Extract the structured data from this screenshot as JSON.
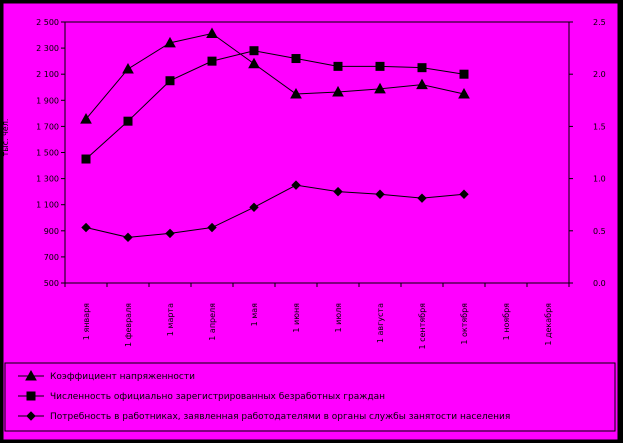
{
  "chart_data": {
    "type": "line",
    "title": "",
    "y_left_label": "тыс. чел.",
    "categories": [
      "1 января",
      "1 февраля",
      "1 марта",
      "1 апреля",
      "1 мая",
      "1 июня",
      "1 июля",
      "1 августа",
      "1 сентября",
      "1 октября",
      "1 ноября",
      "1 декабря"
    ],
    "y_left_ticks": [
      "500",
      "700",
      "900",
      "1 100",
      "1 300",
      "1 500",
      "1 700",
      "1 900",
      "2 100",
      "2 300",
      "2 500"
    ],
    "y_left_range": [
      500,
      2500
    ],
    "y_right_ticks": [
      "0.0",
      "0.5",
      "1.0",
      "1.5",
      "2.0",
      "2.5"
    ],
    "y_right_range": [
      0,
      2.5
    ],
    "series": [
      {
        "name": "Коэффициент напряженности",
        "axis": "right",
        "marker": "triangle",
        "values": [
          1.57,
          2.05,
          2.3,
          2.39,
          2.1,
          1.81,
          1.83,
          1.86,
          1.9,
          1.81,
          null,
          null
        ]
      },
      {
        "name": "Численность официально зарегистрированных безработных граждан",
        "axis": "left",
        "marker": "square",
        "values": [
          1450,
          1740,
          2050,
          2200,
          2280,
          2220,
          2160,
          2160,
          2150,
          2100,
          null,
          null
        ]
      },
      {
        "name": "Потребность в работниках, заявленная работодателями в органы службы занятости населения",
        "axis": "left",
        "marker": "diamond",
        "values": [
          925,
          850,
          880,
          925,
          1080,
          1250,
          1200,
          1180,
          1150,
          1180,
          null,
          null
        ]
      }
    ],
    "legend_position": "bottom",
    "colors": {
      "plot_bg": "#FF00FF",
      "frame_bg": "#000000",
      "line": "#000000"
    }
  }
}
